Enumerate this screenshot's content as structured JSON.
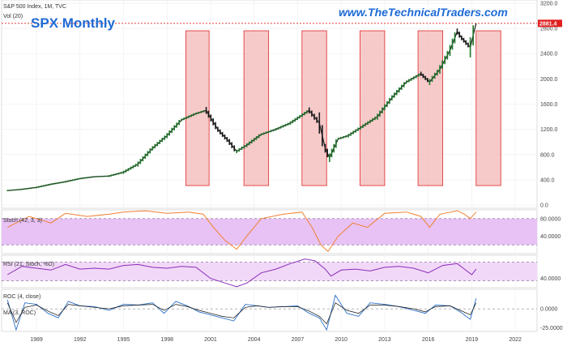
{
  "header": {
    "symbol_line": "S&P 500 Index, 1M, TVC",
    "volume_label": "Vol (20)",
    "title": "SPX Monthly",
    "website": "www.TheTechnicalTraders.com",
    "last_price_badge": "2881.4"
  },
  "colors": {
    "price_up": "#1f7a2a",
    "price_down": "#1a1a1a",
    "highlight_fill": "#f4b8b8",
    "highlight_stroke": "#e23b3b",
    "stoch_line": "#f08030",
    "stoch_band": "#e8c2f5",
    "rsi_line": "#8a2db8",
    "rsi_band": "#f1d8f8",
    "roc_line": "#2a6fc9",
    "roc_ma_line": "#111111",
    "accent": "#1e6bd6",
    "badge": "#e02020"
  },
  "chart_data": [
    {
      "type": "line",
      "name": "price-panel",
      "x": [
        1987.0,
        1988.0,
        1989.0,
        1990.0,
        1991.0,
        1992.0,
        1993.0,
        1994.0,
        1995.0,
        1996.0,
        1997.0,
        1998.0,
        1999.0,
        2000.0,
        2000.7,
        2001.5,
        2002.3,
        2002.8,
        2003.5,
        2004.5,
        2005.5,
        2006.5,
        2007.8,
        2008.5,
        2008.9,
        2009.2,
        2009.8,
        2010.5,
        2011.5,
        2012.5,
        2013.5,
        2014.5,
        2015.5,
        2016.1,
        2016.8,
        2017.5,
        2018.0,
        2018.3,
        2018.9,
        2019.3
      ],
      "values": [
        230,
        250,
        280,
        330,
        370,
        420,
        450,
        460,
        520,
        650,
        900,
        1100,
        1350,
        1450,
        1500,
        1200,
        1000,
        850,
        950,
        1120,
        1200,
        1300,
        1500,
        1300,
        900,
        750,
        1050,
        1100,
        1250,
        1400,
        1700,
        1950,
        2080,
        1950,
        2150,
        2450,
        2750,
        2650,
        2500,
        2880
      ],
      "ylim": [
        -50,
        3250
      ],
      "xlim": [
        1986.6,
        2023.5
      ],
      "y_ticks": [
        "3200.0",
        "2800.0",
        "2400.0",
        "2000.0",
        "1600.0",
        "1200.0",
        "800.0",
        "400.0",
        "0.0"
      ],
      "y_tick_values": [
        3200,
        2800,
        2400,
        2000,
        1600,
        1200,
        800,
        400,
        0
      ],
      "highlight_ranges": [
        [
          1999.3,
          2000.9
        ],
        [
          2003.3,
          2005.0
        ],
        [
          2007.3,
          2009.0
        ],
        [
          2011.3,
          2013.0
        ],
        [
          2015.3,
          2017.0
        ],
        [
          2019.3,
          2021.0
        ]
      ],
      "grid": true
    },
    {
      "type": "line",
      "name": "stoch-panel",
      "label": "Stoch (42, 3, 3)",
      "x": [
        1987.0,
        1988.5,
        1990.0,
        1991.0,
        1992.5,
        1994.0,
        1995.0,
        1996.5,
        1998.0,
        1999.5,
        2000.5,
        2001.2,
        2002.0,
        2002.8,
        2003.5,
        2004.5,
        2006.0,
        2007.3,
        2008.0,
        2008.6,
        2009.1,
        2009.8,
        2010.8,
        2011.8,
        2013.0,
        2014.5,
        2015.5,
        2016.1,
        2016.8,
        2018.0,
        2018.5,
        2018.9,
        2019.3
      ],
      "values": [
        60,
        85,
        70,
        92,
        85,
        90,
        95,
        98,
        92,
        95,
        90,
        60,
        30,
        10,
        40,
        80,
        90,
        95,
        60,
        20,
        5,
        40,
        70,
        60,
        92,
        95,
        85,
        60,
        90,
        98,
        90,
        80,
        95
      ],
      "ylim": [
        0,
        100
      ],
      "y_ticks": [
        "80.0000",
        "40.0000"
      ],
      "y_tick_values": [
        80,
        40
      ],
      "band": [
        20,
        80
      ]
    },
    {
      "type": "line",
      "name": "rsi-stoch-panel",
      "label": "RSI (21, Stoch, %D)",
      "x": [
        1987.0,
        1988.0,
        1989.0,
        1990.0,
        1991.0,
        1992.0,
        1993.0,
        1994.0,
        1995.0,
        1996.0,
        1997.0,
        1998.0,
        1999.0,
        2000.0,
        2001.0,
        2002.0,
        2002.8,
        2003.5,
        2004.5,
        2005.5,
        2006.5,
        2007.5,
        2008.2,
        2008.9,
        2009.3,
        2010.0,
        2011.0,
        2012.0,
        2013.0,
        2014.0,
        2015.0,
        2016.0,
        2017.0,
        2018.0,
        2018.5,
        2019.0,
        2019.3
      ],
      "values": [
        48,
        66,
        62,
        58,
        70,
        60,
        62,
        60,
        68,
        70,
        64,
        62,
        66,
        64,
        40,
        30,
        22,
        30,
        52,
        60,
        72,
        82,
        78,
        60,
        45,
        58,
        60,
        56,
        64,
        66,
        62,
        52,
        68,
        72,
        60,
        48,
        60
      ],
      "ylim": [
        20,
        90
      ],
      "y_ticks": [
        "40.0000"
      ],
      "y_tick_values": [
        40
      ],
      "band": [
        35,
        75
      ]
    },
    {
      "type": "line",
      "name": "roc-panel",
      "label": "ROC (4, close)",
      "ma_label": "MA (3, ROC)",
      "x": [
        1987.0,
        1987.6,
        1988.2,
        1989.0,
        1989.8,
        1990.5,
        1991.2,
        1992.0,
        1993.0,
        1994.0,
        1995.0,
        1996.0,
        1997.0,
        1997.8,
        1998.6,
        1999.4,
        2000.2,
        2001.0,
        2001.8,
        2002.6,
        2003.4,
        2004.2,
        2005.0,
        2006.0,
        2007.0,
        2007.8,
        2008.5,
        2009.0,
        2009.6,
        2010.4,
        2011.2,
        2012.0,
        2013.0,
        2014.0,
        2015.0,
        2015.8,
        2016.5,
        2017.5,
        2018.2,
        2018.9,
        2019.3
      ],
      "values": [
        12,
        -28,
        8,
        6,
        -6,
        -12,
        10,
        4,
        3,
        -2,
        6,
        5,
        8,
        -6,
        10,
        4,
        -4,
        -8,
        -12,
        -16,
        6,
        4,
        2,
        3,
        4,
        -6,
        -12,
        -28,
        18,
        -6,
        -10,
        8,
        6,
        3,
        -2,
        -6,
        5,
        4,
        -4,
        -14,
        14
      ],
      "ma_values": [
        8,
        -18,
        2,
        5,
        -3,
        -9,
        6,
        4,
        2,
        0,
        4,
        5,
        6,
        -2,
        6,
        3,
        -2,
        -6,
        -10,
        -12,
        2,
        4,
        2,
        3,
        3,
        -3,
        -10,
        -20,
        8,
        -2,
        -6,
        5,
        5,
        3,
        0,
        -4,
        3,
        4,
        -2,
        -8,
        8
      ],
      "ylim": [
        -30,
        26
      ],
      "y_ticks": [
        "0.0000",
        "-25.0000"
      ],
      "y_tick_values": [
        0,
        -25
      ],
      "x_ticks": [
        "1989",
        "1992",
        "1995",
        "1998",
        "2001",
        "2004",
        "2007",
        "2010",
        "2013",
        "2016",
        "2019",
        "2022"
      ],
      "x_tick_values": [
        1989,
        1992,
        1995,
        1998,
        2001,
        2004,
        2007,
        2010,
        2013,
        2016,
        2019,
        2022
      ]
    }
  ]
}
